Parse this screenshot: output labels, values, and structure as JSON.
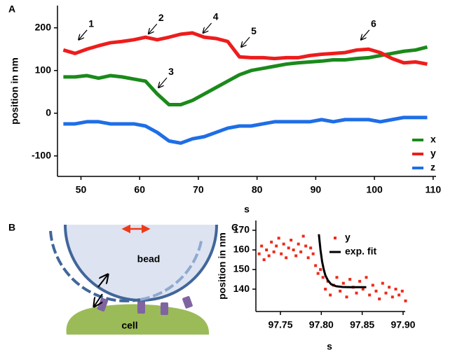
{
  "chart_data": [
    {
      "type": "line",
      "panel_label": "A",
      "xlabel": "s",
      "ylabel": "position in nm",
      "x": [
        47,
        49,
        51,
        53,
        55,
        57,
        59,
        61,
        63,
        65,
        67,
        69,
        71,
        73,
        75,
        77,
        79,
        81,
        83,
        85,
        87,
        89,
        91,
        93,
        95,
        97,
        99,
        101,
        103,
        105,
        107,
        109
      ],
      "series": [
        {
          "name": "x",
          "color": "#1a8a1a",
          "values": [
            85,
            85,
            88,
            82,
            88,
            85,
            80,
            75,
            45,
            20,
            20,
            30,
            45,
            60,
            75,
            90,
            100,
            105,
            110,
            115,
            118,
            120,
            122,
            125,
            125,
            128,
            130,
            135,
            140,
            145,
            148,
            155
          ]
        },
        {
          "name": "y",
          "color": "#ee1c1c",
          "values": [
            148,
            140,
            150,
            158,
            165,
            168,
            172,
            178,
            172,
            178,
            185,
            188,
            178,
            175,
            168,
            132,
            130,
            130,
            128,
            130,
            130,
            135,
            138,
            140,
            142,
            148,
            150,
            142,
            128,
            118,
            120,
            115
          ]
        },
        {
          "name": "z",
          "color": "#1e6ee6",
          "values": [
            -25,
            -25,
            -20,
            -20,
            -25,
            -25,
            -25,
            -30,
            -45,
            -65,
            -70,
            -60,
            -55,
            -45,
            -35,
            -30,
            -30,
            -25,
            -20,
            -20,
            -20,
            -20,
            -15,
            -20,
            -15,
            -15,
            -15,
            -20,
            -15,
            -10,
            -10,
            -10
          ]
        }
      ],
      "annotations": [
        {
          "label": "1",
          "x": 49.6,
          "y": 172
        },
        {
          "label": "2",
          "x": 61.5,
          "y": 186
        },
        {
          "label": "3",
          "x": 63.2,
          "y": 60
        },
        {
          "label": "4",
          "x": 70.8,
          "y": 188
        },
        {
          "label": "5",
          "x": 77.3,
          "y": 155
        },
        {
          "label": "6",
          "x": 97.7,
          "y": 172
        }
      ],
      "xlim": [
        46,
        110.5
      ],
      "xticks": [
        50,
        60,
        70,
        80,
        90,
        100,
        110
      ],
      "ylim": [
        -148,
        252
      ],
      "yticks": [
        -100,
        0,
        100,
        200
      ]
    },
    {
      "type": "scatter",
      "panel_label": "C",
      "xlabel": "s",
      "ylabel": "position in nm",
      "series": [
        {
          "name": "y",
          "color": "#ee2a1a",
          "x": [
            97.724,
            97.727,
            97.73,
            97.733,
            97.736,
            97.739,
            97.742,
            97.745,
            97.748,
            97.751,
            97.754,
            97.757,
            97.76,
            97.763,
            97.766,
            97.769,
            97.772,
            97.775,
            97.778,
            97.781,
            97.784,
            97.787,
            97.79,
            97.793,
            97.796,
            97.799,
            97.802,
            97.805,
            97.808,
            97.811,
            97.815,
            97.819,
            97.823,
            97.827,
            97.831,
            97.835,
            97.839,
            97.843,
            97.847,
            97.851,
            97.855,
            97.859,
            97.863,
            97.867,
            97.871,
            97.875,
            97.879,
            97.883,
            97.887,
            97.891,
            97.895,
            97.899,
            97.903
          ],
          "values": [
            158,
            162,
            155,
            160,
            157,
            164,
            159,
            162,
            166,
            158,
            163,
            156,
            161,
            165,
            160,
            157,
            163,
            159,
            167,
            162,
            156,
            161,
            158,
            152,
            148,
            150,
            146,
            140,
            144,
            137,
            142,
            146,
            139,
            143,
            136,
            145,
            141,
            138,
            144,
            140,
            146,
            137,
            142,
            139,
            135,
            143,
            138,
            141,
            136,
            140,
            137,
            139,
            134
          ]
        },
        {
          "name": "exp. fit",
          "color": "#000000",
          "x": [
            97.797,
            97.799,
            97.801,
            97.803,
            97.805,
            97.808,
            97.812,
            97.818,
            97.826,
            97.835,
            97.845,
            97.855
          ],
          "values": [
            168,
            160,
            154,
            150,
            147,
            144.5,
            142.5,
            141.5,
            141.1,
            141,
            141,
            141
          ]
        }
      ],
      "xlim": [
        97.72,
        97.9026
      ],
      "xticks": [
        97.75,
        {
          "value": 97.8,
          "label": "97.80"
        },
        97.85,
        {
          "value": 97.9,
          "label": "97.90"
        }
      ],
      "ylim": [
        128.6,
        175
      ],
      "yticks": [
        140,
        150,
        160,
        170
      ]
    }
  ],
  "diagram": {
    "panel_label": "B",
    "bead": "bead",
    "cell": "cell"
  }
}
